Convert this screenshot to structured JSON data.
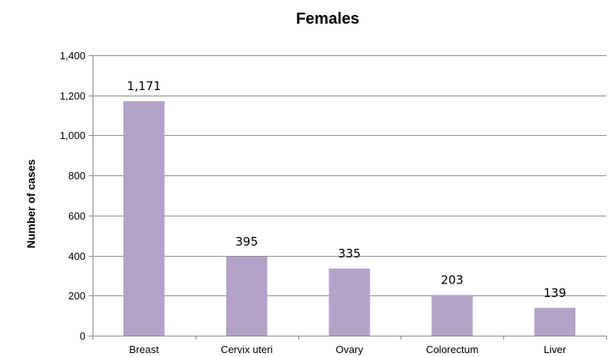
{
  "chart_data": {
    "type": "bar",
    "title": "Females",
    "xlabel": "",
    "ylabel": "Number of cases",
    "categories": [
      "Breast",
      "Cervix uteri",
      "Ovary",
      "Colorectum",
      "Liver"
    ],
    "values": [
      1171,
      395,
      335,
      203,
      139
    ],
    "data_labels": [
      "1,171",
      "395",
      "335",
      "203",
      "139"
    ],
    "ylim": [
      0,
      1400
    ],
    "y_ticks": [
      0,
      200,
      400,
      600,
      800,
      1000,
      1200,
      1400
    ],
    "y_tick_labels": [
      "0",
      "200",
      "400",
      "600",
      "800",
      "1,000",
      "1,200",
      "1,400"
    ],
    "grid": true,
    "bar_color": "#b3a2c7"
  }
}
